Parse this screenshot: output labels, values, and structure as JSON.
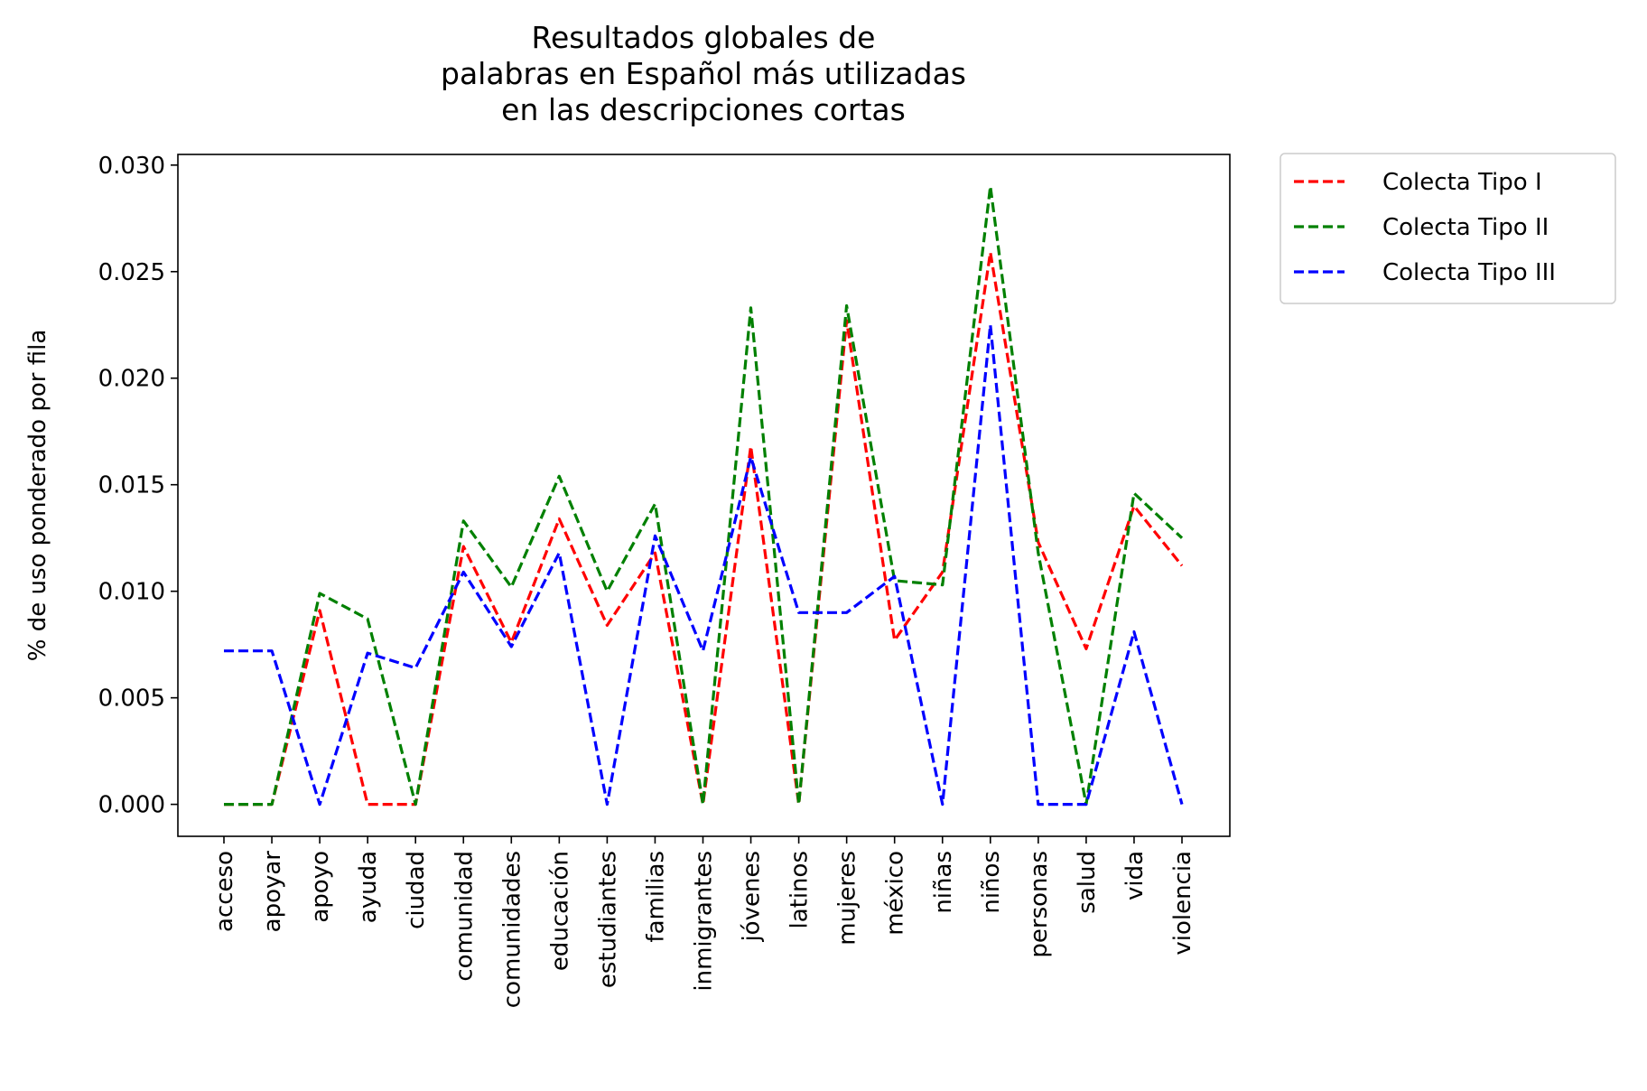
{
  "chart_data": {
    "type": "line",
    "title": [
      "Resultados globales de",
      "palabras en Español más utilizadas",
      "en las descripciones cortas"
    ],
    "xlabel": "",
    "ylabel": "% de uso ponderado por fila",
    "ylim": [
      -0.0015,
      0.0305
    ],
    "yticks": [
      "0.000",
      "0.005",
      "0.010",
      "0.015",
      "0.020",
      "0.025",
      "0.030"
    ],
    "ytick_values": [
      0.0,
      0.005,
      0.01,
      0.015,
      0.02,
      0.025,
      0.03
    ],
    "categories": [
      "acceso",
      "apoyar",
      "apoyo",
      "ayuda",
      "ciudad",
      "comunidad",
      "comunidades",
      "educación",
      "estudiantes",
      "familias",
      "inmigrantes",
      "jóvenes",
      "latinos",
      "mujeres",
      "méxico",
      "niñas",
      "niños",
      "personas",
      "salud",
      "vida",
      "violencia"
    ],
    "grid": false,
    "legend_position": "outside-top-right",
    "series": [
      {
        "name": "Colecta Tipo I",
        "color": "#ff0000",
        "style": "dashed",
        "values": [
          0.0,
          0.0,
          0.0091,
          0.0,
          0.0,
          0.0121,
          0.0076,
          0.0134,
          0.0084,
          0.0118,
          0.0,
          0.0168,
          0.0,
          0.0227,
          0.0077,
          0.0109,
          0.0259,
          0.0123,
          0.0073,
          0.014,
          0.0112
        ]
      },
      {
        "name": "Colecta Tipo II",
        "color": "#008000",
        "style": "dashed",
        "values": [
          0.0,
          0.0,
          0.0099,
          0.0087,
          0.0,
          0.0133,
          0.0102,
          0.0154,
          0.01,
          0.0141,
          0.0,
          0.0233,
          0.0,
          0.0234,
          0.0105,
          0.0103,
          0.029,
          0.0118,
          0.0,
          0.0146,
          0.0125
        ]
      },
      {
        "name": "Colecta Tipo III",
        "color": "#0000ff",
        "style": "dashed",
        "values": [
          0.0072,
          0.0072,
          0.0,
          0.0071,
          0.0064,
          0.0109,
          0.0074,
          0.0118,
          0.0,
          0.0126,
          0.0072,
          0.0163,
          0.009,
          0.009,
          0.0107,
          0.0,
          0.0225,
          0.0,
          0.0,
          0.0081,
          0.0
        ]
      }
    ]
  }
}
